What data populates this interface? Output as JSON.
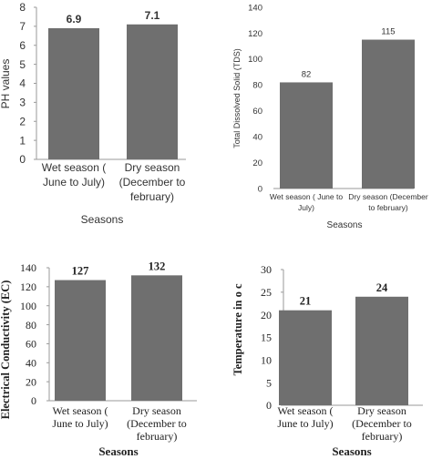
{
  "chart_data": [
    {
      "type": "bar",
      "categories": [
        [
          "Wet season (",
          "June to July)"
        ],
        [
          "Dry season",
          "(December to",
          "february)"
        ]
      ],
      "values": [
        6.9,
        7.1
      ],
      "data_labels": [
        "6.9",
        "7.1"
      ],
      "xlabel": "Seasons",
      "ylabel": "PH values",
      "ylim": [
        0,
        8
      ],
      "yticks": [
        "0",
        "1",
        "2",
        "3",
        "4",
        "5",
        "6",
        "7",
        "8"
      ],
      "grid": false
    },
    {
      "type": "bar",
      "categories": [
        [
          "Wet season ( June to",
          "July)"
        ],
        [
          "Dry season (December",
          "to february)"
        ]
      ],
      "values": [
        82,
        115
      ],
      "data_labels": [
        "82",
        "115"
      ],
      "xlabel": "Seasons",
      "ylabel": "Total Dissolved Solid (TDS)",
      "ylim": [
        0,
        140
      ],
      "yticks": [
        "0",
        "20",
        "40",
        "60",
        "80",
        "100",
        "120",
        "140"
      ],
      "grid": false
    },
    {
      "type": "bar",
      "categories": [
        [
          "Wet season (",
          "June to July)"
        ],
        [
          "Dry season",
          "(December to",
          "february)"
        ]
      ],
      "values": [
        127,
        132
      ],
      "data_labels": [
        "127",
        "132"
      ],
      "xlabel": "Seasons",
      "ylabel": "Electrical Conductivity (EC)",
      "ylim": [
        0,
        140
      ],
      "yticks": [
        "0",
        "20",
        "40",
        "60",
        "80",
        "100",
        "120",
        "140"
      ],
      "grid": false
    },
    {
      "type": "bar",
      "categories": [
        [
          "Wet season (",
          "June to July)"
        ],
        [
          "Dry season",
          "(December to",
          "february)"
        ]
      ],
      "values": [
        21,
        24
      ],
      "data_labels": [
        "21",
        "24"
      ],
      "xlabel": "Seasons",
      "ylabel": "Temperature in o c",
      "ylim": [
        0,
        30
      ],
      "yticks": [
        "0",
        "5",
        "10",
        "15",
        "20",
        "25",
        "30"
      ],
      "grid": false
    }
  ],
  "colors": {
    "bar": "#6f6f6f",
    "axis": "#9a9a9a",
    "text": "#333333"
  }
}
